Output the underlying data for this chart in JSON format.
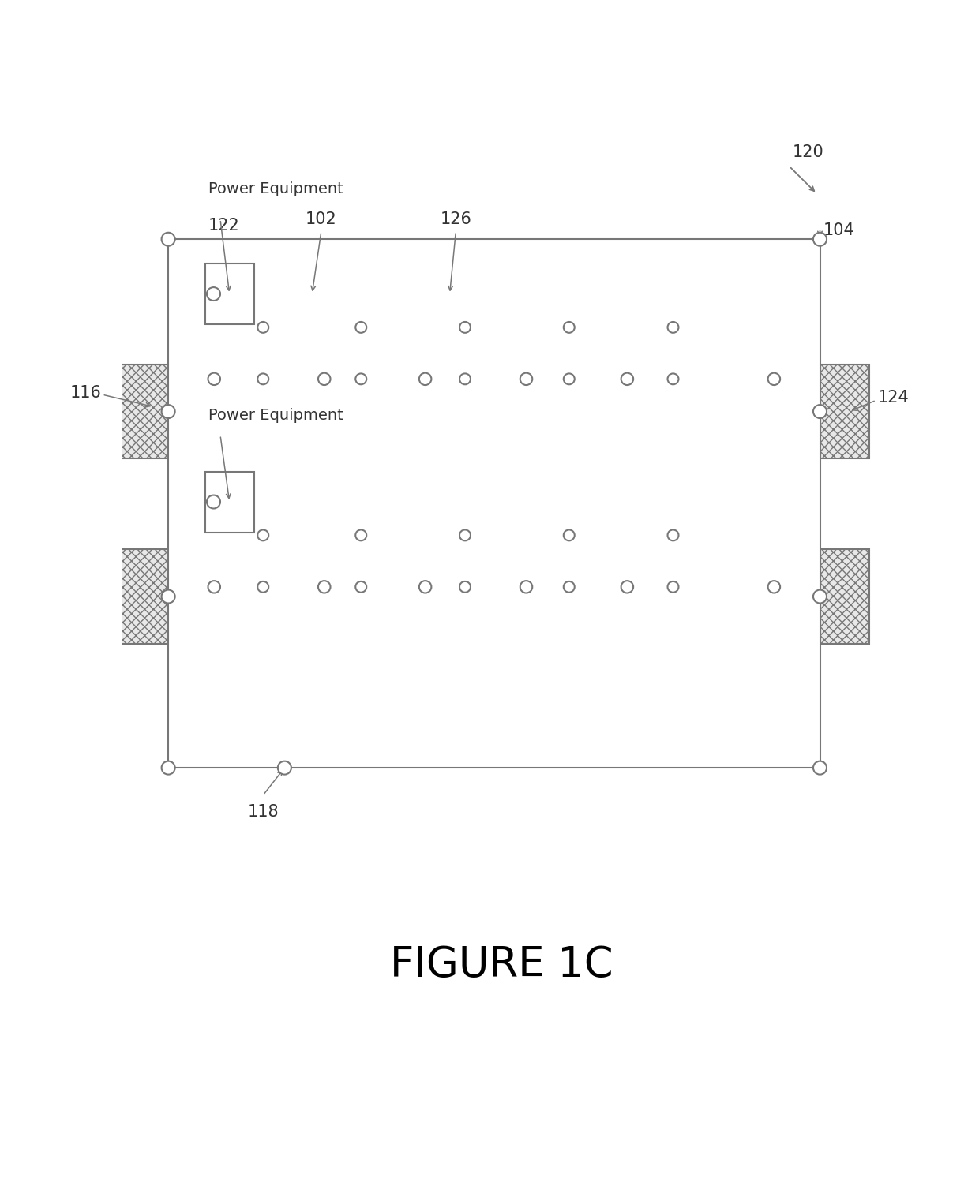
{
  "bg_color": "#ffffff",
  "figure_label": "FIGURE 1C",
  "label_120": "120",
  "label_104": "104",
  "label_116": "116",
  "label_124": "124",
  "label_118": "118",
  "label_122": "122",
  "label_102": "102",
  "label_126": "126",
  "line_color": "#777777",
  "text_color": "#333333",
  "hatch_fill": "#e8e8e8"
}
